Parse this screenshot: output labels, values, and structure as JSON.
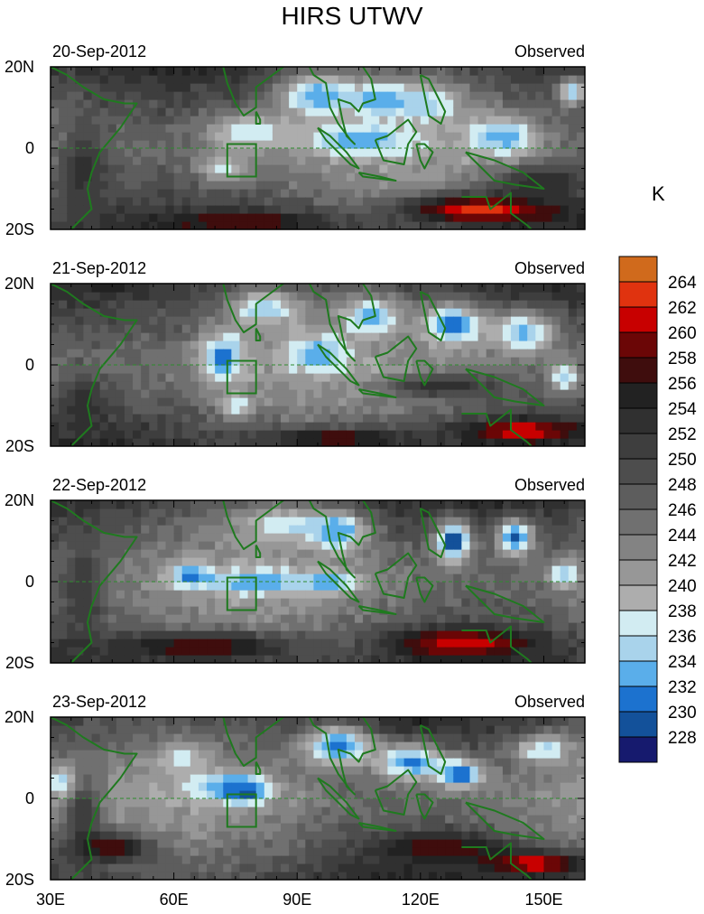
{
  "chart_data": {
    "type": "heatmap",
    "title": "HIRS UTWV",
    "unit": "K",
    "x_ticks": [
      "30E",
      "60E",
      "90E",
      "120E",
      "150E"
    ],
    "x_tick_values": [
      30,
      60,
      90,
      120,
      150
    ],
    "xlim": [
      30,
      160
    ],
    "ylim": [
      -20,
      20
    ],
    "y_ticks": [
      "20N",
      "0",
      "20S"
    ],
    "y_tick_values": [
      20,
      0,
      -20
    ],
    "colorbar": {
      "levels": [
        "228",
        "230",
        "232",
        "234",
        "236",
        "238",
        "240",
        "242",
        "244",
        "246",
        "248",
        "250",
        "252",
        "254",
        "256",
        "258",
        "260",
        "262",
        "264"
      ],
      "colors": [
        "#161a6e",
        "#13519a",
        "#1c72cf",
        "#5aaeea",
        "#a9d3eb",
        "#d2ecf2",
        "#adadad",
        "#979797",
        "#838383",
        "#707070",
        "#5d5d5d",
        "#4d4d4d",
        "#3e3e3e",
        "#303030",
        "#222222",
        "#3f0d0d",
        "#6b0606",
        "#c80000",
        "#e0330f",
        "#d06a1c"
      ]
    },
    "box": {
      "lon": [
        73,
        80
      ],
      "lat": [
        -7,
        1
      ]
    },
    "panels": [
      {
        "date": "20-Sep-2012",
        "label": "Observed",
        "blobs": [
          {
            "lon": 95,
            "lat": 13,
            "rlon": 10,
            "rlat": 6,
            "v": 232
          },
          {
            "lon": 110,
            "lat": 12,
            "rlon": 8,
            "rlat": 5,
            "v": 233
          },
          {
            "lon": 105,
            "lat": 2,
            "rlon": 14,
            "rlat": 4,
            "v": 232
          },
          {
            "lon": 122,
            "lat": 11,
            "rlon": 9,
            "rlat": 6,
            "v": 235
          },
          {
            "lon": 140,
            "lat": 3,
            "rlon": 9,
            "rlat": 5,
            "v": 232
          },
          {
            "lon": 78,
            "lat": 4,
            "rlon": 12,
            "rlat": 5,
            "v": 236
          },
          {
            "lon": 72,
            "lat": -5,
            "rlon": 7,
            "rlat": 4,
            "v": 237
          },
          {
            "lon": 157,
            "lat": 14,
            "rlon": 4,
            "rlat": 4,
            "v": 234
          },
          {
            "lon": 135,
            "lat": -15,
            "rlon": 22,
            "rlat": 4,
            "v": 263
          },
          {
            "lon": 78,
            "lat": -18,
            "rlon": 22,
            "rlat": 3,
            "v": 258
          },
          {
            "lon": 38,
            "lat": -5,
            "rlon": 7,
            "rlat": 12,
            "v": 253
          },
          {
            "lon": 150,
            "lat": -8,
            "rlon": 12,
            "rlat": 4,
            "v": 254
          }
        ]
      },
      {
        "date": "21-Sep-2012",
        "label": "Observed",
        "blobs": [
          {
            "lon": 72,
            "lat": 2,
            "rlon": 6,
            "rlat": 7,
            "v": 231
          },
          {
            "lon": 95,
            "lat": 3,
            "rlon": 8,
            "rlat": 5,
            "v": 232
          },
          {
            "lon": 82,
            "lat": 14,
            "rlon": 9,
            "rlat": 5,
            "v": 234
          },
          {
            "lon": 108,
            "lat": 12,
            "rlon": 8,
            "rlat": 5,
            "v": 233
          },
          {
            "lon": 128,
            "lat": 10,
            "rlon": 8,
            "rlat": 6,
            "v": 231
          },
          {
            "lon": 145,
            "lat": 8,
            "rlon": 9,
            "rlat": 6,
            "v": 233
          },
          {
            "lon": 155,
            "lat": -3,
            "rlon": 4,
            "rlat": 4,
            "v": 234
          },
          {
            "lon": 75,
            "lat": -10,
            "rlon": 5,
            "rlat": 3,
            "v": 236
          },
          {
            "lon": 145,
            "lat": -16,
            "rlon": 16,
            "rlat": 3,
            "v": 262
          },
          {
            "lon": 100,
            "lat": -18,
            "rlon": 20,
            "rlat": 3,
            "v": 258
          },
          {
            "lon": 38,
            "lat": -10,
            "rlon": 6,
            "rlat": 8,
            "v": 253
          },
          {
            "lon": 125,
            "lat": -5,
            "rlon": 15,
            "rlat": 3,
            "v": 254
          }
        ]
      },
      {
        "date": "22-Sep-2012",
        "label": "Observed",
        "blobs": [
          {
            "lon": 128,
            "lat": 10,
            "rlon": 5,
            "rlat": 6,
            "v": 228
          },
          {
            "lon": 143,
            "lat": 11,
            "rlon": 5,
            "rlat": 5,
            "v": 230
          },
          {
            "lon": 100,
            "lat": 12,
            "rlon": 7,
            "rlat": 5,
            "v": 232
          },
          {
            "lon": 80,
            "lat": 0,
            "rlon": 14,
            "rlat": 3,
            "v": 232
          },
          {
            "lon": 64,
            "lat": 2,
            "rlon": 6,
            "rlat": 3,
            "v": 231
          },
          {
            "lon": 98,
            "lat": 0,
            "rlon": 8,
            "rlat": 3,
            "v": 233
          },
          {
            "lon": 88,
            "lat": 14,
            "rlon": 14,
            "rlat": 5,
            "v": 236
          },
          {
            "lon": 155,
            "lat": 2,
            "rlon": 4,
            "rlat": 4,
            "v": 234
          },
          {
            "lon": 130,
            "lat": -15,
            "rlon": 18,
            "rlat": 4,
            "v": 262
          },
          {
            "lon": 68,
            "lat": -16,
            "rlon": 24,
            "rlat": 4,
            "v": 258
          },
          {
            "lon": 38,
            "lat": -2,
            "rlon": 6,
            "rlat": 12,
            "v": 252
          }
        ]
      },
      {
        "date": "23-Sep-2012",
        "label": "Observed",
        "blobs": [
          {
            "lon": 77,
            "lat": 2,
            "rlon": 6,
            "rlat": 3,
            "v": 228
          },
          {
            "lon": 100,
            "lat": 13,
            "rlon": 10,
            "rlat": 6,
            "v": 231
          },
          {
            "lon": 118,
            "lat": 9,
            "rlon": 9,
            "rlat": 5,
            "v": 231
          },
          {
            "lon": 130,
            "lat": 6,
            "rlon": 6,
            "rlat": 4,
            "v": 230
          },
          {
            "lon": 72,
            "lat": 3,
            "rlon": 10,
            "rlat": 4,
            "v": 233
          },
          {
            "lon": 150,
            "lat": 12,
            "rlon": 8,
            "rlat": 4,
            "v": 235
          },
          {
            "lon": 33,
            "lat": 4,
            "rlon": 4,
            "rlat": 5,
            "v": 234
          },
          {
            "lon": 62,
            "lat": 10,
            "rlon": 6,
            "rlat": 4,
            "v": 236
          },
          {
            "lon": 148,
            "lat": -16,
            "rlon": 14,
            "rlat": 3,
            "v": 262
          },
          {
            "lon": 125,
            "lat": -12,
            "rlon": 18,
            "rlat": 4,
            "v": 258
          },
          {
            "lon": 45,
            "lat": -12,
            "rlon": 10,
            "rlat": 4,
            "v": 258
          },
          {
            "lon": 38,
            "lat": -3,
            "rlon": 5,
            "rlat": 10,
            "v": 252
          }
        ]
      }
    ]
  }
}
